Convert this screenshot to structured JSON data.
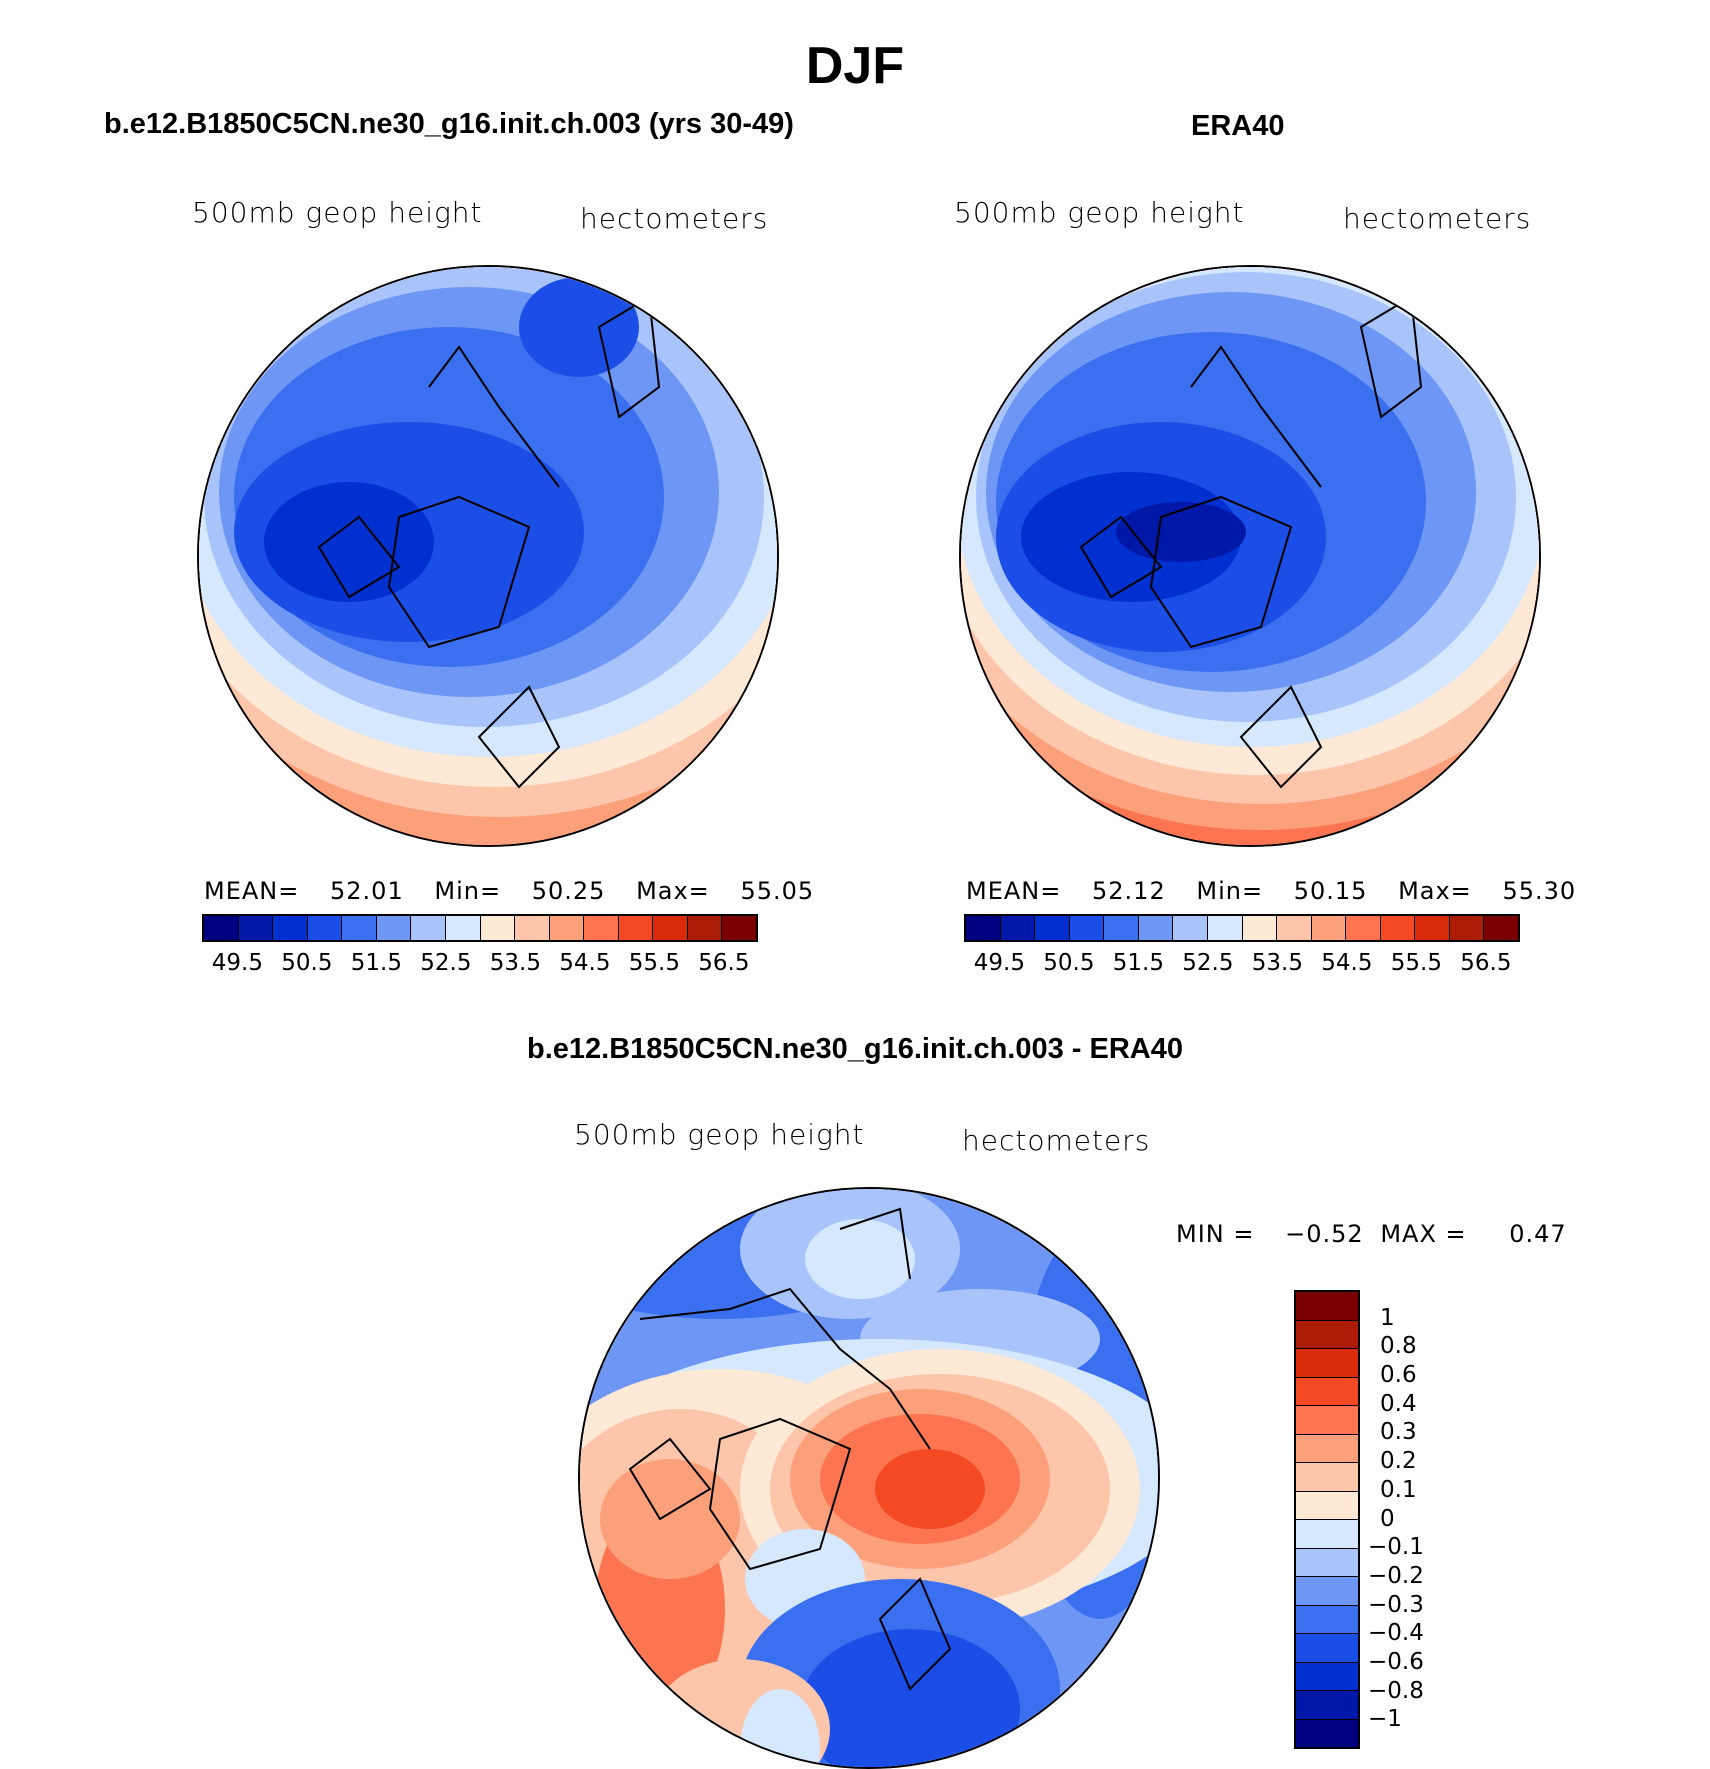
{
  "figure": {
    "title": "DJF",
    "panels": {
      "model": {
        "title": "b.e12.B1850C5CN.ne30_g16.init.ch.003 (yrs 30-49)",
        "left_label": "500mb  geop  height",
        "right_label": "hectometers",
        "stats": {
          "mean_label": "MEAN=",
          "mean": "52.01",
          "min_label": "Min=",
          "min": "50.25",
          "max_label": "Max=",
          "max": "55.05"
        }
      },
      "obs": {
        "title": "ERA40",
        "left_label": "500mb  geop  height",
        "right_label": "hectometers",
        "stats": {
          "mean_label": "MEAN=",
          "mean": "52.12",
          "min_label": "Min=",
          "min": "50.15",
          "max_label": "Max=",
          "max": "55.30"
        }
      },
      "diff": {
        "title": "b.e12.B1850C5CN.ne30_g16.init.ch.003 - ERA40",
        "left_label": "500mb  geop  height",
        "right_label": "hectometers",
        "stats": {
          "min_label": "MIN =",
          "min": "−0.52",
          "max_label": "MAX =",
          "max": "0.47"
        }
      }
    },
    "colorbar_main": {
      "colors": [
        "#000080",
        "#0018a8",
        "#0030d0",
        "#1a4ee6",
        "#3a6ff0",
        "#6e96f4",
        "#a9c4fa",
        "#d6e8fe",
        "#fee8d6",
        "#fdc6aa",
        "#fca07c",
        "#fc7550",
        "#f34a24",
        "#d92a0a",
        "#ad1c06",
        "#7a0000"
      ],
      "ticks": [
        "49.5",
        "50.5",
        "51.5",
        "52.5",
        "53.5",
        "54.5",
        "55.5",
        "56.5"
      ]
    },
    "colorbar_diff": {
      "colors": [
        "#7a0000",
        "#ad1c06",
        "#d92a0a",
        "#f34a24",
        "#fc7550",
        "#fca07c",
        "#fdc6aa",
        "#fee8d6",
        "#d6e8fe",
        "#a9c4fa",
        "#6e96f4",
        "#3a6ff0",
        "#1a4ee6",
        "#0030d0",
        "#0018a8",
        "#000080"
      ],
      "ticks": [
        "1",
        "0.8",
        "0.6",
        "0.4",
        "0.3",
        "0.2",
        "0.1",
        "0",
        "−0.1",
        "−0.2",
        "−0.3",
        "−0.4",
        "−0.6",
        "−0.8",
        "−1"
      ]
    }
  }
}
